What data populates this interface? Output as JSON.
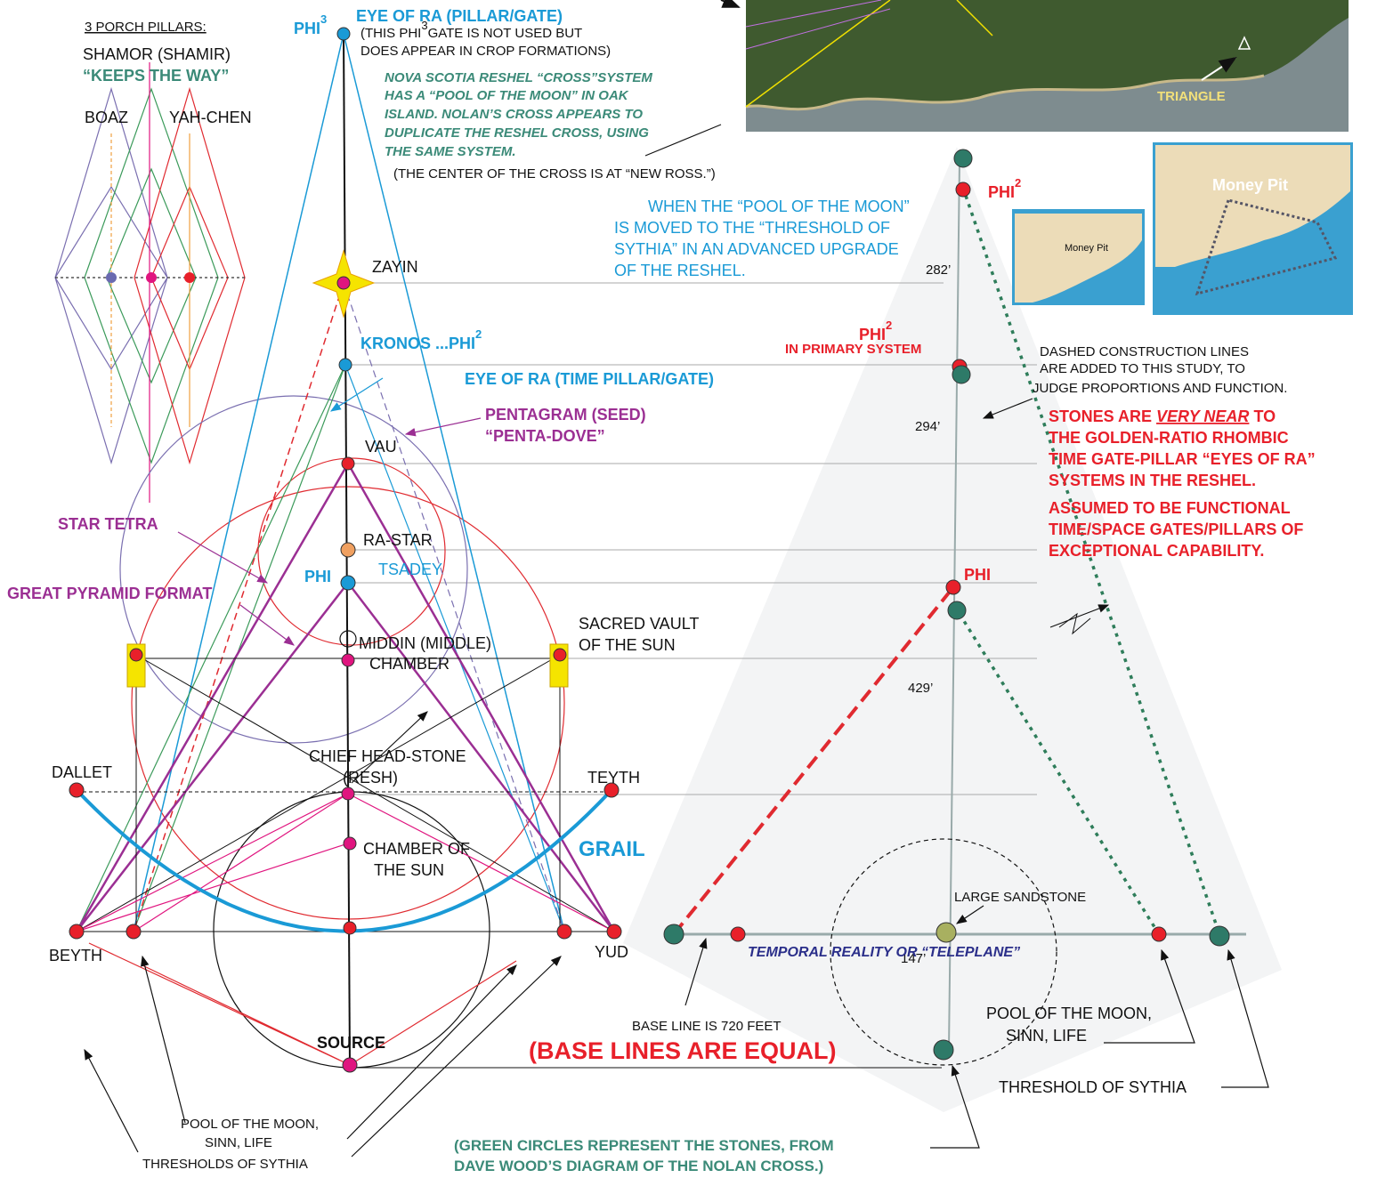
{
  "labels": {
    "porch_title": "3 PORCH PILLARS:",
    "porch_name": "SHAMOR (SHAMIR)",
    "porch_motto": "“KEEPS THE WAY”",
    "boaz": "BOAZ",
    "yah_chen": "YAH-CHEN",
    "phi3": "PHI",
    "phi3_exp": "3",
    "eye_of_ra_top": "EYE OF RA (PILLAR/GATE)",
    "phi3_note": [
      "(THIS PHI",
      "GATE IS NOT USED BUT",
      "DOES APPEAR IN CROP FORMATIONS)"
    ],
    "phi3_note_exp": "3",
    "nova_scotia": [
      "NOVA SCOTIA RESHEL “CROSS”SYSTEM",
      "HAS A “POOL OF THE MOON” IN OAK",
      "ISLAND. NOLAN’S CROSS APPEARS TO",
      "DUPLICATE THE RESHEL CROSS, USING",
      "THE SAME SYSTEM."
    ],
    "new_ross": "(THE CENTER OF THE CROSS IS AT “NEW ROSS.”)",
    "pool_moved": [
      "WHEN THE “POOL OF THE MOON”",
      "IS MOVED TO THE “THRESHOLD OF",
      "SYTHIA” IN AN ADVANCED UPGRADE",
      "OF THE RESHEL."
    ],
    "zayin": "ZAYIN",
    "kronos": "KRONOS ...PHI",
    "kronos_exp": "2",
    "eye_of_ra_time": "EYE OF RA (TIME PILLAR/GATE)",
    "pentagram": [
      "PENTAGRAM (SEED)",
      "“PENTA-DOVE”"
    ],
    "vau": "VAU",
    "star_tetra": "STAR TETRA",
    "ra_star": "RA-STAR",
    "tsadey": "TSADEY",
    "phi_blue": "PHI",
    "great_pyramid": "GREAT PYRAMID FORMAT",
    "middin": [
      "MIDDIN (MIDDLE)",
      "CHAMBER"
    ],
    "sacred_vault": [
      "SACRED VAULT",
      "OF THE SUN"
    ],
    "chief_head": [
      "CHIEF HEAD-STONE",
      "(RESH)"
    ],
    "dallet": "DALLET",
    "teyth": "TEYTH",
    "chamber_sun": [
      "CHAMBER OF",
      "THE SUN"
    ],
    "grail": "GRAIL",
    "beyth": "BEYTH",
    "yud": "YUD",
    "source": "SOURCE",
    "pool_left": [
      "POOL OF THE MOON,",
      "SINN, LIFE",
      "THRESHOLDS OF SYTHIA"
    ],
    "green_circles": [
      "(GREEN CIRCLES REPRESENT THE STONES, FROM",
      "DAVE WOOD’S DIAGRAM OF THE NOLAN CROSS.)"
    ],
    "base_equal": "(BASE LINES ARE EQUAL)",
    "base_720": "BASE LINE IS 720 FEET",
    "triangle": "TRIANGLE",
    "money_pit": "Money Pit",
    "phi2_top": "PHI",
    "phi2_top_exp": "2",
    "d282": "282’",
    "d294": "294’",
    "d429": "429’",
    "d147": "147’",
    "phi2_primary": "PHI",
    "phi2_primary_exp": "2",
    "in_primary": "IN PRIMARY SYSTEM",
    "dashed_note": [
      "DASHED CONSTRUCTION LINES",
      "ARE ADDED TO THIS STUDY, TO",
      "JUDGE PROPORTIONS AND FUNCTION."
    ],
    "stones_pre": "STONES ARE",
    "stones_em": "VERY NEAR",
    "stones_post": "TO",
    "stones": [
      "THE GOLDEN-RATIO RHOMBIC",
      "TIME GATE-PILLAR “EYES OF RA”",
      "SYSTEMS IN THE RESHEL."
    ],
    "assumed": [
      "ASSUMED TO BE FUNCTIONAL",
      "TIME/SPACE GATES/PILLARS OF",
      "EXCEPTIONAL CAPABILITY."
    ],
    "phi_red": "PHI",
    "sandstone": "LARGE SANDSTONE",
    "teleplane": "TEMPORAL REALITY OR “TELEPLANE”",
    "pool_right": [
      "POOL OF THE MOON,",
      "SINN, LIFE"
    ],
    "threshold": "THRESHOLD OF SYTHIA"
  }
}
